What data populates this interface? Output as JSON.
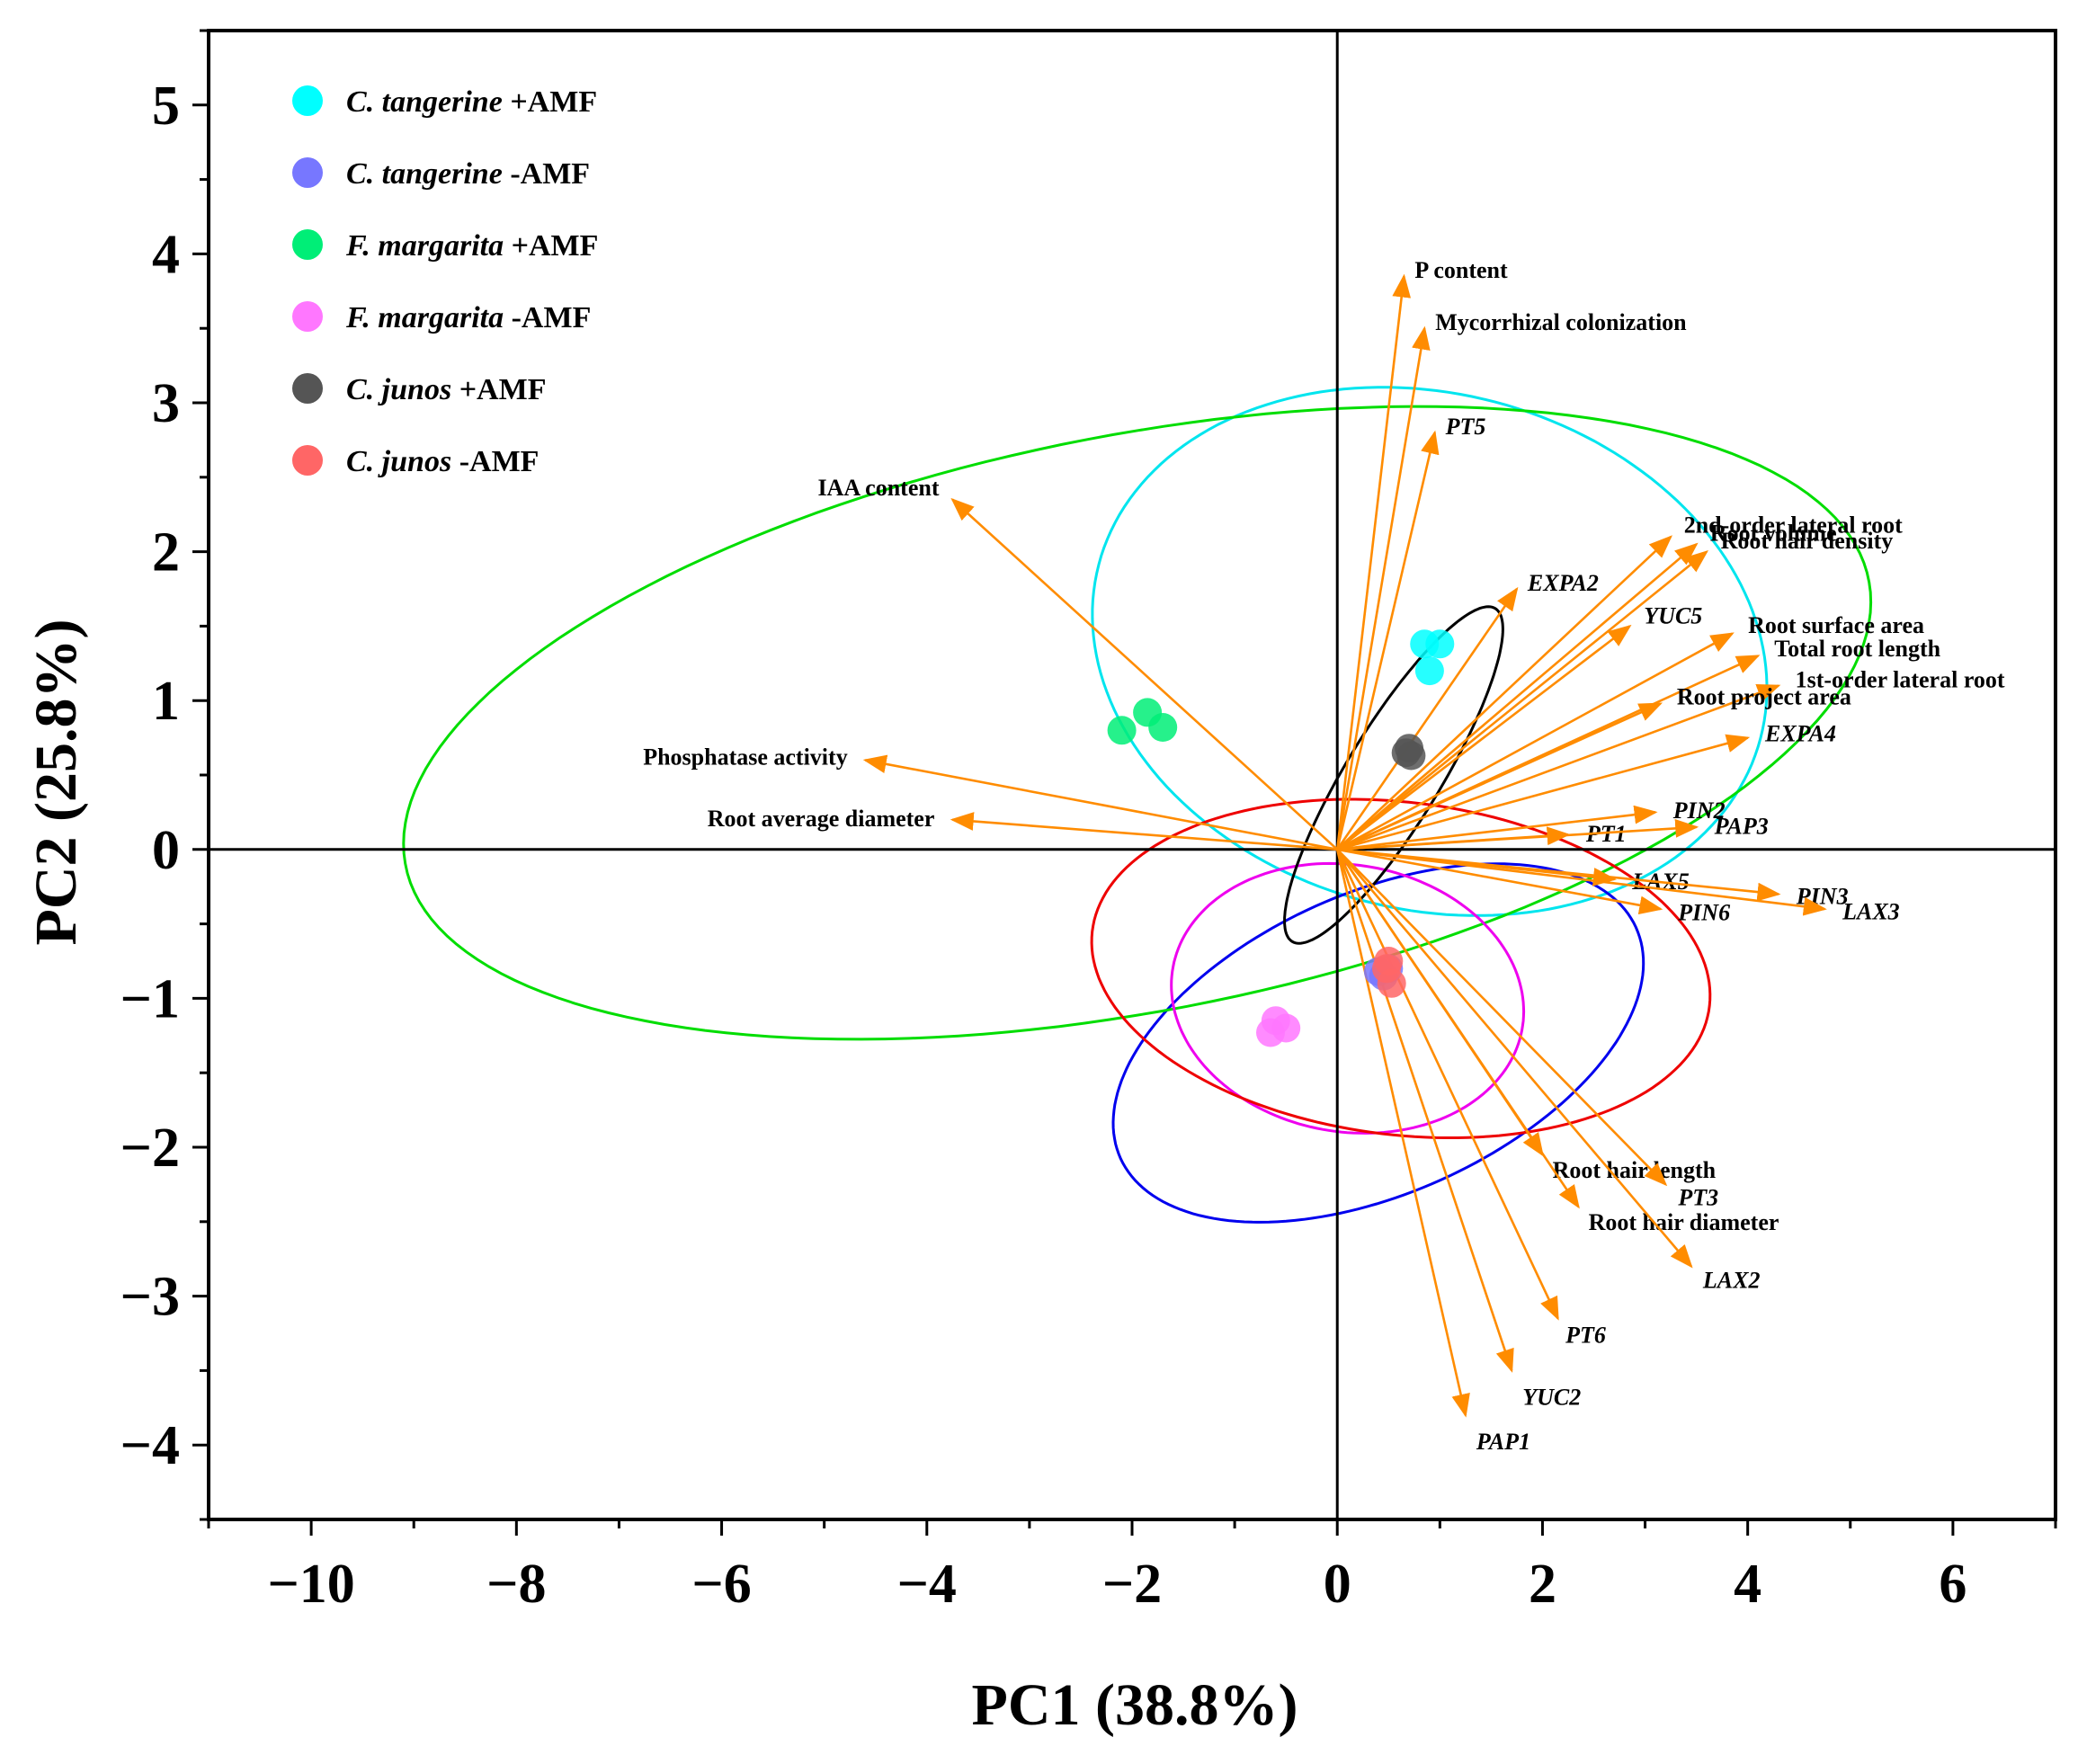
{
  "chart_data": {
    "type": "scatter",
    "subtype": "pca-biplot",
    "title": "",
    "xlabel": "PC1 (38.8%)",
    "ylabel": "PC2 (25.8%)",
    "xlim": [
      -11,
      7
    ],
    "ylim": [
      -4.5,
      5.5
    ],
    "x_ticks": [
      -10,
      -8,
      -6,
      -4,
      -2,
      0,
      2,
      4,
      6
    ],
    "y_ticks": [
      -4,
      -3,
      -2,
      -1,
      0,
      1,
      2,
      3,
      4,
      5
    ],
    "grid": false,
    "zero_lines": true,
    "legend_position": "top-left",
    "loading_color": "#ff8c00",
    "series": [
      {
        "name": "C. tangerine +AMF",
        "species": "C. tangerine",
        "treatment": "+AMF",
        "color": "#00ffff",
        "points": [
          [
            0.85,
            1.38
          ],
          [
            1.0,
            1.38
          ],
          [
            0.9,
            1.2
          ]
        ],
        "ellipse": {
          "center": [
            0.9,
            1.33
          ],
          "semi_axes": [
            1.75,
            3.3
          ],
          "angle_deg": 84
        }
      },
      {
        "name": "C. tangerine -AMF",
        "species": "C. tangerine",
        "treatment": "-AMF",
        "color": "#7777ff",
        "points": [
          [
            0.4,
            -0.82
          ],
          [
            0.45,
            -0.85
          ],
          [
            0.5,
            -0.8
          ]
        ],
        "ellipse": {
          "center": [
            0.4,
            -1.3
          ],
          "semi_axes": [
            2.65,
            1.05
          ],
          "angle_deg": 14
        }
      },
      {
        "name": "F. margarita +AMF",
        "species": "F. margarita",
        "treatment": "+AMF",
        "color": "#00ee77",
        "points": [
          [
            -2.1,
            0.8
          ],
          [
            -1.85,
            0.92
          ],
          [
            -1.7,
            0.82
          ]
        ],
        "ellipse": {
          "center": [
            -1.95,
            0.85
          ],
          "semi_axes": [
            7.2,
            1.95
          ],
          "angle_deg": 7
        }
      },
      {
        "name": "F. margarita -AMF",
        "species": "F. margarita",
        "treatment": "-AMF",
        "color": "#ff77ff",
        "points": [
          [
            -0.65,
            -1.23
          ],
          [
            -0.6,
            -1.15
          ],
          [
            -0.5,
            -1.2
          ]
        ],
        "ellipse": {
          "center": [
            0.1,
            -1.0
          ],
          "semi_axes": [
            1.72,
            0.9
          ],
          "angle_deg": -4
        }
      },
      {
        "name": "C. junos +AMF",
        "species": "C. junos",
        "treatment": "+AMF",
        "color": "#555555",
        "points": [
          [
            0.67,
            0.65
          ],
          [
            0.7,
            0.68
          ],
          [
            0.72,
            0.63
          ]
        ],
        "ellipse": {
          "center": [
            0.55,
            0.5
          ],
          "semi_axes": [
            1.5,
            0.4
          ],
          "angle_deg": 47
        }
      },
      {
        "name": "C. junos -AMF",
        "species": "C. junos",
        "treatment": "-AMF",
        "color": "#ff6666",
        "points": [
          [
            0.5,
            -0.75
          ],
          [
            0.48,
            -0.8
          ],
          [
            0.53,
            -0.9
          ]
        ],
        "ellipse": {
          "center": [
            0.62,
            -0.8
          ],
          "semi_axes": [
            1.12,
            3.02
          ],
          "angle_deg": 86
        }
      }
    ],
    "ellipse_colors": [
      "#00e5ee",
      "#0000ee",
      "#00dd00",
      "#ee00ee",
      "#000000",
      "#ee0000"
    ],
    "loadings": [
      {
        "name": "P content",
        "x": 0.65,
        "y": 3.85,
        "italic": false
      },
      {
        "name": "Mycorrhizal colonization",
        "x": 0.85,
        "y": 3.5,
        "italic": false
      },
      {
        "name": "PT5",
        "x": 0.95,
        "y": 2.8,
        "italic": true
      },
      {
        "name": "IAA content",
        "x": -3.75,
        "y": 2.35,
        "italic": false
      },
      {
        "name": "EXPA2",
        "x": 1.75,
        "y": 1.75,
        "italic": true
      },
      {
        "name": "2nd-order lateral root",
        "x": 3.25,
        "y": 2.1,
        "italic": false
      },
      {
        "name": "Root volume",
        "x": 3.5,
        "y": 2.05,
        "italic": false
      },
      {
        "name": "Root hair density",
        "x": 3.6,
        "y": 2.0,
        "italic": false
      },
      {
        "name": "YUC5",
        "x": 2.85,
        "y": 1.5,
        "italic": true
      },
      {
        "name": "Root surface area",
        "x": 3.85,
        "y": 1.45,
        "italic": false
      },
      {
        "name": "Total root length",
        "x": 4.1,
        "y": 1.3,
        "italic": false
      },
      {
        "name": "1st-order lateral root",
        "x": 4.3,
        "y": 1.1,
        "italic": false
      },
      {
        "name": "Root project area",
        "x": 3.15,
        "y": 0.98,
        "italic": false
      },
      {
        "name": "EXPA4",
        "x": 4.0,
        "y": 0.75,
        "italic": true
      },
      {
        "name": "Phosphatase activity",
        "x": -4.6,
        "y": 0.6,
        "italic": false
      },
      {
        "name": "Root average diameter",
        "x": -3.75,
        "y": 0.2,
        "italic": false
      },
      {
        "name": "PIN2",
        "x": 3.1,
        "y": 0.25,
        "italic": true
      },
      {
        "name": "PT1",
        "x": 2.25,
        "y": 0.1,
        "italic": true
      },
      {
        "name": "PAP3",
        "x": 3.5,
        "y": 0.15,
        "italic": true
      },
      {
        "name": "LAX5",
        "x": 2.7,
        "y": -0.2,
        "italic": true
      },
      {
        "name": "PIN3",
        "x": 4.3,
        "y": -0.3,
        "italic": true
      },
      {
        "name": "LAX3",
        "x": 4.75,
        "y": -0.4,
        "italic": true
      },
      {
        "name": "PIN6",
        "x": 3.15,
        "y": -0.4,
        "italic": true
      },
      {
        "name": "Root hair length",
        "x": 2.0,
        "y": -2.05,
        "italic": false
      },
      {
        "name": "PT3",
        "x": 3.2,
        "y": -2.25,
        "italic": true
      },
      {
        "name": "Root hair diameter",
        "x": 2.35,
        "y": -2.4,
        "italic": false
      },
      {
        "name": "LAX2",
        "x": 3.45,
        "y": -2.8,
        "italic": true
      },
      {
        "name": "PT6",
        "x": 2.15,
        "y": -3.15,
        "italic": true
      },
      {
        "name": "YUC2",
        "x": 1.7,
        "y": -3.5,
        "italic": true
      },
      {
        "name": "PAP1",
        "x": 1.25,
        "y": -3.8,
        "italic": true
      }
    ]
  }
}
